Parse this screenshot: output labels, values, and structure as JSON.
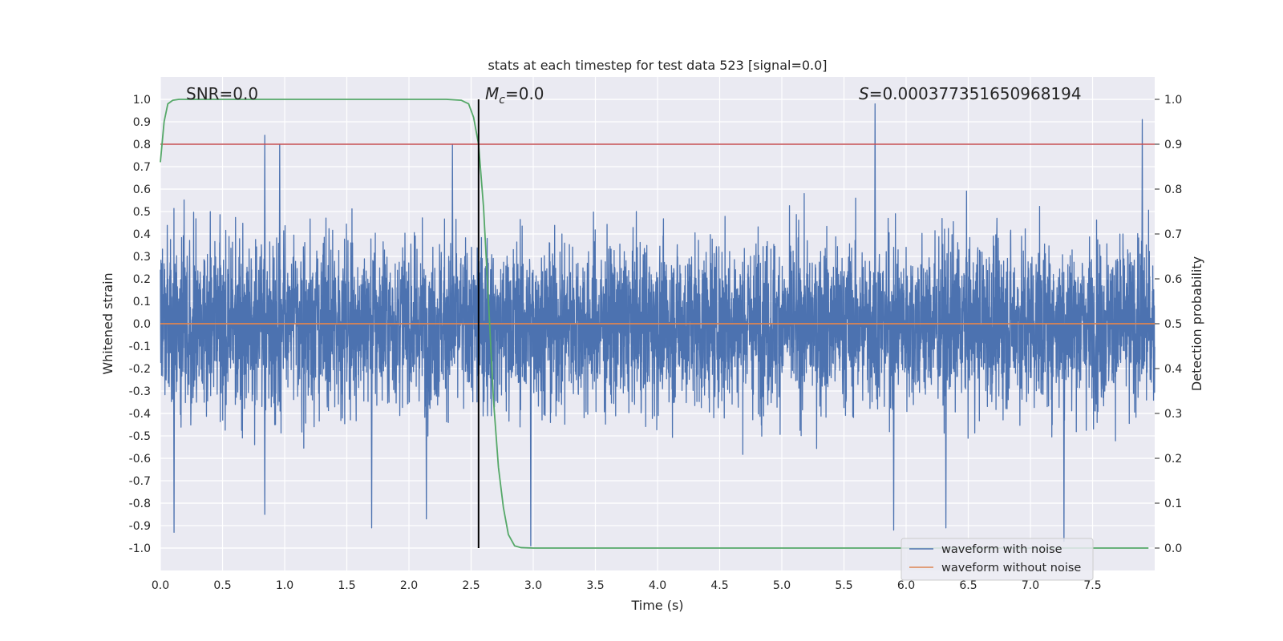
{
  "chart_data": {
    "type": "line",
    "title": "stats at each timestep for test data 523 [signal=0.0]",
    "xlabel": "Time (s)",
    "ylabel": "Whitened strain",
    "y2label": "Detection probability",
    "xlim": [
      0.0,
      8.0
    ],
    "ylim": [
      -1.1,
      1.1
    ],
    "y2lim": [
      -0.05,
      1.05
    ],
    "x_ticks": [
      "0.0",
      "0.5",
      "1.0",
      "1.5",
      "2.0",
      "2.5",
      "3.0",
      "3.5",
      "4.0",
      "4.5",
      "5.0",
      "5.5",
      "6.0",
      "6.5",
      "7.0",
      "7.5"
    ],
    "y_ticks": [
      "1.0",
      "0.9",
      "0.8",
      "0.7",
      "0.6",
      "0.5",
      "0.4",
      "0.3",
      "0.2",
      "0.1",
      "0.0",
      "-0.1",
      "-0.2",
      "-0.3",
      "-0.4",
      "-0.5",
      "-0.6",
      "-0.7",
      "-0.8",
      "-0.9",
      "-1.0"
    ],
    "y2_ticks": [
      "1.0",
      "0.9",
      "0.8",
      "0.7",
      "0.6",
      "0.5",
      "0.4",
      "0.3",
      "0.2",
      "0.1",
      "0.0"
    ],
    "grid": true,
    "legend_position": "bottom-right",
    "annotations": {
      "snr": "SNR=0.0",
      "mc_symbol": "M",
      "mc_sub": "c",
      "mc_value": "=0.0",
      "s_symbol": "S",
      "s_value": "=0.000377351650968194"
    },
    "threshold": {
      "axis": "y2",
      "value": 0.9,
      "color": "#c44e52"
    },
    "marker_line": {
      "x": 2.56
    },
    "series": [
      {
        "name": "waveform with noise",
        "axis": "y",
        "color": "#4c72b0",
        "description_range": [
          -1.0,
          1.0
        ],
        "peaks": [
          {
            "x": 0.11,
            "y": -0.93
          },
          {
            "x": 0.84,
            "y": 0.84
          },
          {
            "x": 0.84,
            "y": -0.85
          },
          {
            "x": 0.96,
            "y": 0.8
          },
          {
            "x": 1.7,
            "y": -0.91
          },
          {
            "x": 2.14,
            "y": -0.87
          },
          {
            "x": 2.35,
            "y": 0.8
          },
          {
            "x": 2.98,
            "y": -0.99
          },
          {
            "x": 5.75,
            "y": 0.98
          },
          {
            "x": 5.9,
            "y": -0.92
          },
          {
            "x": 6.32,
            "y": -0.91
          },
          {
            "x": 7.27,
            "y": -0.97
          },
          {
            "x": 7.9,
            "y": 0.91
          }
        ]
      },
      {
        "name": "waveform without noise",
        "axis": "y",
        "color": "#dd8452",
        "x": [
          0.0,
          8.0
        ],
        "y": [
          0.0,
          0.0
        ]
      },
      {
        "name": "",
        "axis": "y2",
        "color": "#55a868",
        "x": [
          0.0,
          0.03,
          0.06,
          0.1,
          0.15,
          0.3,
          1.0,
          2.0,
          2.3,
          2.42,
          2.48,
          2.52,
          2.56,
          2.6,
          2.64,
          2.68,
          2.72,
          2.76,
          2.8,
          2.85,
          2.9,
          3.0,
          4.0,
          5.0,
          6.0,
          7.0,
          7.95
        ],
        "y": [
          0.86,
          0.95,
          0.99,
          0.998,
          1.0,
          1.0,
          1.0,
          1.0,
          1.0,
          0.998,
          0.99,
          0.96,
          0.9,
          0.76,
          0.55,
          0.33,
          0.18,
          0.09,
          0.03,
          0.005,
          0.001,
          0.0,
          0.0,
          0.0,
          0.0,
          0.0,
          0.0
        ]
      }
    ]
  }
}
